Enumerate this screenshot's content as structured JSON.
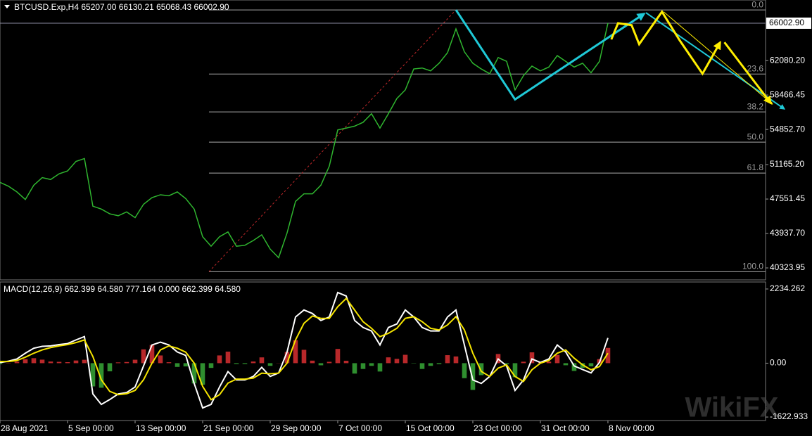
{
  "chart_data": [
    {
      "type": "line",
      "title": "BTCUSD.Exp,H4  65207.00 66130.21 65068.43 66002.90",
      "x": [
        0,
        1,
        2,
        3,
        4,
        5,
        6,
        7,
        8,
        9,
        10,
        11,
        12,
        13,
        14,
        15,
        16,
        17,
        18,
        19,
        20,
        21,
        22,
        23,
        24,
        25,
        26,
        27,
        28,
        29,
        30,
        31,
        32,
        33,
        34,
        35,
        36,
        37,
        38,
        39,
        40,
        41,
        42,
        43,
        44,
        45,
        46,
        47,
        48,
        49,
        50,
        51,
        52,
        53,
        54,
        55,
        56,
        57,
        58,
        59,
        60,
        61,
        62,
        63,
        64,
        65,
        66,
        67,
        68,
        69,
        70,
        71,
        72
      ],
      "series": [
        {
          "color": "#2fb52f",
          "values": [
            49300,
            48900,
            48300,
            47500,
            49000,
            49800,
            49600,
            50200,
            50500,
            51500,
            51800,
            46800,
            46500,
            46000,
            45800,
            46200,
            45600,
            47000,
            47700,
            48000,
            47900,
            48300,
            47600,
            46500,
            43600,
            42600,
            43600,
            44100,
            42600,
            42700,
            43200,
            43800,
            42300,
            41400,
            44000,
            47300,
            48100,
            48100,
            49000,
            51000,
            54800,
            55000,
            55200,
            55600,
            56500,
            55000,
            56500,
            58100,
            59000,
            61200,
            61300,
            61000,
            61800,
            62900,
            65400,
            63000,
            61800,
            61200,
            60700,
            62400,
            62000,
            59000,
            60500,
            61500,
            61000,
            61400,
            62600,
            62000,
            61400,
            61800,
            60800,
            62000,
            66002.9
          ]
        }
      ],
      "xlim": [
        0,
        90.67
      ],
      "ylim": [
        39070,
        68435
      ],
      "yticks": [
        {
          "value": 62080.2,
          "label": "62080.20"
        },
        {
          "value": 58466.45,
          "label": "58466.45"
        },
        {
          "value": 54852.7,
          "label": "54852.70"
        },
        {
          "value": 51165.2,
          "label": "51165.20"
        },
        {
          "value": 47551.45,
          "label": "47551.45"
        },
        {
          "value": 43937.7,
          "label": "43937.70"
        },
        {
          "value": 40323.95,
          "label": "40323.95"
        }
      ],
      "last_price": {
        "value": 66002.9,
        "label": "66002.90"
      },
      "fibonacci": {
        "color": "#c0282a",
        "anchor": [
          [
            24.75,
            39930
          ],
          [
            54,
            67395
          ]
        ],
        "levels": [
          {
            "value": 67395,
            "label": "0.0"
          },
          {
            "value": 60668,
            "label": "23.6"
          },
          {
            "value": 56690,
            "label": "38.2"
          },
          {
            "value": 53520,
            "label": "50.0"
          },
          {
            "value": 50280,
            "label": "61.8"
          },
          {
            "value": 39930,
            "label": "100.0"
          }
        ]
      },
      "drawings": [
        {
          "color": "#1fc8d6",
          "width": 3,
          "points": [
            [
              54,
              67400
            ],
            [
              61,
              58000
            ],
            [
              76.3,
              67000
            ]
          ]
        },
        {
          "color": "#1fc8d6",
          "width": 2,
          "points": [
            [
              76.5,
              67100
            ],
            [
              92.9,
              57000
            ]
          ]
        },
        {
          "color": "#ffee00",
          "width": 3,
          "points": [
            [
              72.4,
              64300
            ],
            [
              73.2,
              66000
            ],
            [
              74.8,
              65800
            ],
            [
              75.7,
              63800
            ],
            [
              78.4,
              67200
            ],
            [
              80.5,
              64200
            ],
            [
              83.2,
              60700
            ],
            [
              85.3,
              64000
            ]
          ]
        },
        {
          "color": "#ffee00",
          "width": 1,
          "points": [
            [
              78.6,
              67200
            ],
            [
              91.5,
              57500
            ]
          ]
        },
        {
          "color": "#ffee00",
          "width": 3,
          "points": [
            [
              85.8,
              64000
            ],
            [
              91.3,
              57600
            ]
          ]
        }
      ]
    },
    {
      "type": "macd",
      "title": "MACD(12,26,9) 662.399 64.580 777.164 0.000 662.399 64.580",
      "x": [
        0,
        1,
        2,
        3,
        4,
        5,
        6,
        7,
        8,
        9,
        10,
        11,
        12,
        13,
        14,
        15,
        16,
        17,
        18,
        19,
        20,
        21,
        22,
        23,
        24,
        25,
        26,
        27,
        28,
        29,
        30,
        31,
        32,
        33,
        34,
        35,
        36,
        37,
        38,
        39,
        40,
        41,
        42,
        43,
        44,
        45,
        46,
        47,
        48,
        49,
        50,
        51,
        52,
        53,
        54,
        55,
        56,
        57,
        58,
        59,
        60,
        61,
        62,
        63,
        64,
        65,
        66,
        67,
        68,
        69,
        70,
        71,
        72
      ],
      "histogram": {
        "up_color": "#b8282a",
        "down_color": "#2f8f2f",
        "values": [
          -30,
          10,
          46,
          120,
          150,
          106,
          50,
          40,
          30,
          80,
          101,
          -700,
          -740,
          -246,
          23,
          35,
          103,
          416,
          548,
          232,
          28,
          -113,
          -98,
          -611,
          -649,
          -143,
          233,
          347,
          -26,
          -26,
          50,
          174,
          -80,
          5,
          337,
          691,
          402,
          76,
          -64,
          41,
          429,
          73,
          -314,
          -175,
          -81,
          -252,
          175,
          130,
          252,
          -9,
          -175,
          -81,
          -31,
          241,
          202,
          -452,
          -806,
          -361,
          0,
          276,
          -34,
          -422,
          44,
          326,
          21,
          46,
          248,
          -63,
          -234,
          -140,
          -95,
          121,
          459
        ]
      },
      "series": [
        {
          "color": "#ffffff",
          "values": [
            20,
            60,
            126,
            300,
            450,
            506,
            520,
            560,
            590,
            700,
            801,
            -927,
            -1243,
            -1096,
            -927,
            -885,
            -717,
            -84,
            548,
            632,
            548,
            337,
            232,
            -611,
            -1349,
            -1243,
            -717,
            -253,
            -506,
            -506,
            -400,
            -126,
            -400,
            -295,
            337,
            1391,
            1602,
            1496,
            1286,
            1391,
            2129,
            2023,
            1286,
            1075,
            969,
            548,
            1075,
            1180,
            1602,
            1391,
            1075,
            969,
            969,
            1391,
            1602,
            548,
            -506,
            -611,
            -400,
            126,
            -84,
            -822,
            -506,
            126,
            21,
            126,
            548,
            337,
            -84,
            -190,
            -295,
            21,
            759
          ]
        },
        {
          "color": "#f5e400",
          "values": [
            50,
            50,
            80,
            180,
            300,
            400,
            470,
            520,
            560,
            620,
            700,
            200,
            -500,
            -850,
            -950,
            -920,
            -820,
            -500,
            0,
            400,
            520,
            450,
            330,
            0,
            -700,
            -1100,
            -950,
            -600,
            -480,
            -480,
            -450,
            -300,
            -320,
            -300,
            0,
            700,
            1200,
            1420,
            1350,
            1350,
            1700,
            1950,
            1600,
            1250,
            1050,
            800,
            900,
            1050,
            1350,
            1400,
            1250,
            1050,
            1000,
            1150,
            1400,
            1000,
            300,
            -250,
            -400,
            -150,
            -50,
            -400,
            -550,
            -200,
            0,
            80,
            300,
            400,
            150,
            -50,
            -200,
            -100,
            300
          ]
        }
      ],
      "xlim": [
        0,
        90.67
      ],
      "ylim": [
        -1728,
        2445
      ],
      "yticks": [
        {
          "value": 2234.262,
          "label": "2234.262"
        },
        {
          "value": 0,
          "label": "0.00"
        },
        {
          "value": -1622.933,
          "label": "-1622.933"
        }
      ],
      "xticks": [
        {
          "value": 0,
          "label": "28 Aug 2021"
        },
        {
          "value": 8,
          "label": "5 Sep 00:00"
        },
        {
          "value": 16,
          "label": "13 Sep 00:00"
        },
        {
          "value": 24,
          "label": "21 Sep 00:00"
        },
        {
          "value": 32,
          "label": "29 Sep 00:00"
        },
        {
          "value": 40,
          "label": "7 Oct 00:00"
        },
        {
          "value": 48,
          "label": "15 Oct 00:00"
        },
        {
          "value": 56,
          "label": "23 Oct 00:00"
        },
        {
          "value": 64,
          "label": "31 Oct 00:00"
        },
        {
          "value": 72,
          "label": "8 Nov 00:00"
        }
      ]
    }
  ],
  "watermark": "WikiFX"
}
